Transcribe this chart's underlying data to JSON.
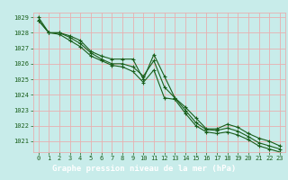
{
  "x": [
    0,
    1,
    2,
    3,
    4,
    5,
    6,
    7,
    8,
    9,
    10,
    11,
    12,
    13,
    14,
    15,
    16,
    17,
    18,
    19,
    20,
    21,
    22,
    23
  ],
  "line1": [
    1029.0,
    1028.0,
    1028.0,
    1027.8,
    1027.5,
    1026.8,
    1026.5,
    1026.3,
    1026.3,
    1026.3,
    1025.0,
    1026.6,
    1025.2,
    1023.8,
    1023.2,
    1022.5,
    1021.8,
    1021.8,
    1022.1,
    1021.9,
    1021.5,
    1021.2,
    1021.0,
    1020.7
  ],
  "line2": [
    1028.8,
    1028.0,
    1028.0,
    1027.7,
    1027.3,
    1026.7,
    1026.3,
    1026.0,
    1026.0,
    1025.8,
    1025.2,
    1026.2,
    1024.5,
    1023.8,
    1023.0,
    1022.2,
    1021.75,
    1021.7,
    1021.85,
    1021.65,
    1021.3,
    1020.9,
    1020.7,
    1020.5
  ],
  "line3": [
    1028.8,
    1028.0,
    1027.9,
    1027.5,
    1027.1,
    1026.5,
    1026.2,
    1025.9,
    1025.8,
    1025.5,
    1024.8,
    1025.6,
    1023.8,
    1023.7,
    1022.8,
    1022.0,
    1021.6,
    1021.5,
    1021.6,
    1021.4,
    1021.1,
    1020.7,
    1020.5,
    1020.3
  ],
  "bg_color": "#c8ecea",
  "grid_color": "#e8b0b0",
  "line_color": "#1a5e1a",
  "xlabel": "Graphe pression niveau de la mer (hPa)",
  "xlabel_color": "#ffffff",
  "xlabel_bg": "#2a6e2a",
  "ylim": [
    1020.3,
    1029.3
  ],
  "yticks": [
    1021,
    1022,
    1023,
    1024,
    1025,
    1026,
    1027,
    1028,
    1029
  ],
  "xticks": [
    0,
    1,
    2,
    3,
    4,
    5,
    6,
    7,
    8,
    9,
    10,
    11,
    12,
    13,
    14,
    15,
    16,
    17,
    18,
    19,
    20,
    21,
    22,
    23
  ],
  "marker_size": 2.5,
  "line_width": 0.8
}
